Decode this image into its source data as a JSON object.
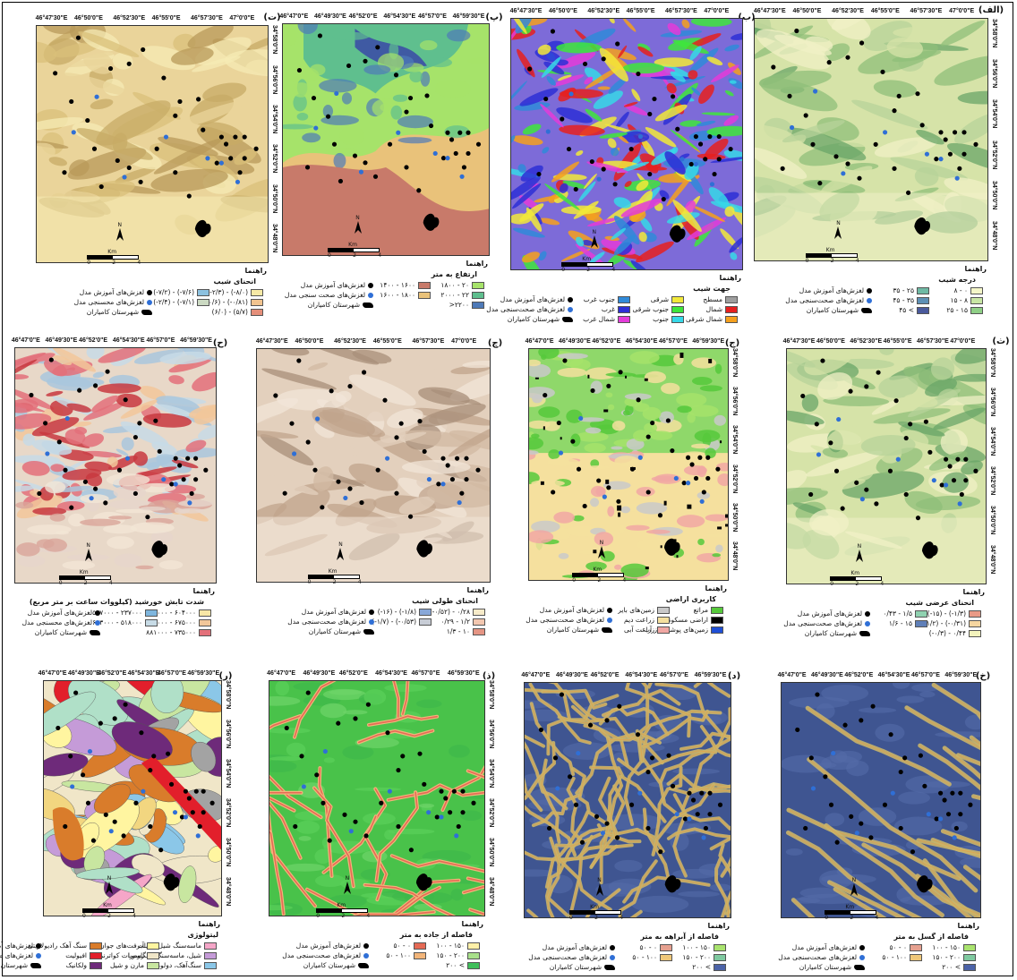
{
  "panels": [
    {
      "id": "alef",
      "tag": "(الف)",
      "bg": {
        "type": "slope-green",
        "c1": "#e9f0b8",
        "c2": "#8cc26f",
        "c3": "#3f8f5c"
      },
      "lons": [
        "46°47'30\"E",
        "46°50'0\"E",
        "46°52'30\"E",
        "46°55'0\"E",
        "46°57'30\"E",
        "47°0'0\"E"
      ],
      "lats": [
        "34°58'0\"N",
        "34°56'0\"N",
        "34°54'0\"N",
        "34°52'0\"N",
        "34°50'0\"N",
        "34°48'0\"N"
      ],
      "legend": {
        "head": "راهنما",
        "title": "درجه شیب",
        "classes": [
          {
            "label": "۸ - ۰",
            "color": "#f4f6c8"
          },
          {
            "label": "۱۵ - ۸",
            "color": "#c8e6a4"
          },
          {
            "label": "۲۵ - ۱۵",
            "color": "#8fcf86"
          },
          {
            "label": "۳۵ - ۲۵",
            "color": "#6fb9a4"
          },
          {
            "label": "۴۵ - ۳۵",
            "color": "#5e90b5"
          },
          {
            "label": "۴۵ <",
            "color": "#4a5a9c"
          }
        ],
        "points": [
          "لغزش‌های آموزش مدل",
          "لغزش‌های صحت‌سنجی مدل",
          "شهرستان کامیاران"
        ]
      }
    },
    {
      "id": "be",
      "tag": "(ب)",
      "bg": {
        "type": "aspect"
      },
      "lons": [
        "46°47'30\"E",
        "46°50'0\"E",
        "46°52'30\"E",
        "46°55'0\"E",
        "46°57'30\"E",
        "47°0'0\"E"
      ],
      "lats": [],
      "legend": {
        "head": "راهنما",
        "title": "جهت شیب",
        "classes": [
          {
            "label": "مسطح",
            "color": "#9e9e9e"
          },
          {
            "label": "شمال",
            "color": "#e6201f"
          },
          {
            "label": "شمال شرقی",
            "color": "#f5a01d"
          },
          {
            "label": "شرقی",
            "color": "#f2e93a"
          },
          {
            "label": "جنوب شرقی",
            "color": "#3ee63b"
          },
          {
            "label": "جنوب",
            "color": "#36d8e8"
          },
          {
            "label": "جنوب غرب",
            "color": "#2f8ad9"
          },
          {
            "label": "غرب",
            "color": "#2d2fd6"
          },
          {
            "label": "شمال غرب",
            "color": "#e33bd9"
          }
        ],
        "points": [
          "لغزش‌های آموزش مدل",
          "لغزش‌های صحت‌سنجی مدل",
          "شهرستان کامیاران"
        ]
      }
    },
    {
      "id": "pe",
      "tag": "(پ)",
      "bg": {
        "type": "elevation"
      },
      "lons": [
        "46°47'0\"E",
        "46°49'30\"E",
        "46°52'0\"E",
        "46°54'30\"E",
        "46°57'0\"E",
        "46°59'30\"E"
      ],
      "lats": [],
      "legend": {
        "head": "راهنما",
        "title": "ارتفاع به متر",
        "classes": [
          {
            "label": "۱۸۰۰ - ۲۰",
            "color": "#a6e36a"
          },
          {
            "label": "۲۰۰۰ - ۲۲",
            "color": "#5fbf8e"
          },
          {
            "label": ">۲۲۰۰",
            "color": "#4e7ab8"
          },
          {
            "label": "۱۴۰۰ - ۱۶۰۰",
            "color": "#c87a6a"
          },
          {
            "label": "۱۶۰۰ - ۱۸۰۰",
            "color": "#e9c27a"
          }
        ],
        "points": [
          "لغزش‌های آموزش مدل",
          "لغزش‌های صحت سنجی مدل",
          "شهرستان کامیاران"
        ]
      }
    },
    {
      "id": "te",
      "tag": "(ت)",
      "bg": {
        "type": "slope-yellow",
        "c1": "#f3e6a8",
        "c2": "#d9c07a",
        "c3": "#b89a5a"
      },
      "lons": [
        "46°47'30\"E",
        "46°50'0\"E",
        "46°52'30\"E",
        "46°55'0\"E",
        "46°57'30\"E",
        "47°0'0\"E"
      ],
      "lats": [
        "34°58'0\"N",
        "34°56'0\"N",
        "34°54'0\"N",
        "34°52'0\"N",
        "34°50'0\"N",
        "34°48'0\"N"
      ],
      "legend": {
        "head": "راهنما",
        "title": "انحنای شیب",
        "classes": [
          {
            "label": "(-۲/۳) - (-۸/۰)",
            "color": "#f6e9a6"
          },
          {
            "label": "(۰/۶) - (-۰/۸۱)",
            "color": "#f2c48f"
          },
          {
            "label": "(۶/۰) - (۵/۷)",
            "color": "#e58f7a"
          },
          {
            "label": "(-۷/۲) - (-۷/۶)",
            "color": "#8cc1df"
          },
          {
            "label": "(-۲/۴) - (-۷/۱)",
            "color": "#cbd9c2"
          }
        ],
        "points": [
          "لغزش‌های آموزش مدل",
          "لغزش‌های محسنجی مدل",
          "شهرستان کامیاران"
        ]
      }
    },
    {
      "id": "se",
      "tag": "(ث)",
      "bg": {
        "type": "slope-green",
        "c1": "#f0f0c6",
        "c2": "#b7d39a",
        "c3": "#7fa870"
      },
      "lons": [
        "46°47'30\"E",
        "46°50'0\"E",
        "46°52'30\"E",
        "46°55'0\"E",
        "46°57'30\"E",
        "47°0'0\"E"
      ],
      "lats": [
        "34°58'0\"N",
        "34°56'0\"N",
        "34°54'0\"N",
        "34°52'0\"N",
        "34°50'0\"N",
        "34°48'0\"N"
      ],
      "legend": {
        "head": "راهنما",
        "title": "انحنای عرضی شیب",
        "classes": [
          {
            "label": "(-۱۵) - (-۱/۳)",
            "color": "#e99a86"
          },
          {
            "label": "(-۱/۲) - (-۰/۳۱)",
            "color": "#f6d6a0"
          },
          {
            "label": "(-۰/۳) - ۰/۴۴",
            "color": "#f3f3bc"
          },
          {
            "label": "۰/۴۳ - ۱/۵",
            "color": "#8fd1b0"
          },
          {
            "label": "۱/۶ - ۱۵",
            "color": "#5f7fb8"
          }
        ],
        "points": [
          "لغزش‌های آموزش مدل",
          "لغزش‌های صحت‌سنجی مدل",
          "شهرستان کامیاران"
        ]
      }
    },
    {
      "id": "jim",
      "tag": "(ج)",
      "bg": {
        "type": "landuse"
      },
      "lons": [
        "46°47'0\"E",
        "46°49'30\"E",
        "46°52'0\"E",
        "46°54'30\"E",
        "46°57'0\"E",
        "46°59'30\"E"
      ],
      "lats": [
        "34°58'0\"N",
        "34°56'0\"N",
        "34°54'0\"N",
        "34°52'0\"N",
        "34°50'0\"N",
        "34°48'0\"N"
      ],
      "legend": {
        "head": "راهنما",
        "title": "کاربری اراضی",
        "classes": [
          {
            "label": "مراتع",
            "color": "#56c93b"
          },
          {
            "label": "اراضی مسکونی",
            "color": "#000000"
          },
          {
            "label": "زمین‌های پوشیده از آب",
            "color": "#1f4fd6"
          },
          {
            "label": "زمین‌های بایر",
            "color": "#c9c9c9"
          },
          {
            "label": "زراعت دیم",
            "color": "#f5e09e"
          },
          {
            "label": "زراعت آبی",
            "color": "#f1a7a3"
          }
        ],
        "points": [
          "لغزش‌های آموزش مدل",
          "لغزش‌های صحت‌سنجی مدل",
          "شهرستان کامیاران"
        ]
      }
    },
    {
      "id": "che",
      "tag": "(چ)",
      "bg": {
        "type": "slope-brown"
      },
      "lons": [
        "46°47'30\"E",
        "46°50'0\"E",
        "46°52'30\"E",
        "46°55'0\"E",
        "46°57'30\"E",
        "47°0'0\"E"
      ],
      "lats": [],
      "legend": {
        "head": "راهنما",
        "title": "انحنای طولی شیب",
        "classes": [
          {
            "label": "(-۰/۵۲) - ۰/۲۸",
            "color": "#f7ebc9"
          },
          {
            "label": "۰/۲۹ - ۱/۲",
            "color": "#f3c7b0"
          },
          {
            "label": "۱/۳ - ۱۰",
            "color": "#e59584"
          },
          {
            "label": "(-۱۶) - (-۱/۸)",
            "color": "#89a8d8"
          },
          {
            "label": "(-۱/۷) - (-۰/۵۳)",
            "color": "#c8cdd6"
          }
        ],
        "points": [
          "لغزش‌های آموزش مدل",
          "لغزش‌های صحت‌سنجی مدل",
          "شهرستان کامیاران"
        ]
      }
    },
    {
      "id": "he",
      "tag": "(ح)",
      "bg": {
        "type": "solar"
      },
      "lons": [
        "46°47'0\"E",
        "46°49'30\"E",
        "46°52'0\"E",
        "46°54'30\"E",
        "46°57'0\"E",
        "46°59'30\"E"
      ],
      "lats": [],
      "legend": {
        "head": "راهنما",
        "title": "شدت تابش خورشید (کیلووات ساعت بر متر مربع)",
        "classes": [
          {
            "label": "۶۷۴۰۰۰ - ۶۰۴۰۰۰",
            "color": "#f7e7a6"
          },
          {
            "label": "۷۳۴۰۰۰ - ۶۷۵۰۰۰",
            "color": "#f2c79a"
          },
          {
            "label": "۸۸۱۰۰۰ - ۷۳۵۰۰۰",
            "color": "#e3707a"
          },
          {
            "label": "۵۱۷۰۰۰ - ۲۳۷۰۰۰",
            "color": "#7fb6de"
          },
          {
            "label": "۶۰۳۰۰۰ - ۵۱۸۰۰۰",
            "color": "#c7dbe6"
          }
        ],
        "points": [
          "لغزش‌های آموزش مدل",
          "لغزش‌های محسنجی مدل",
          "شهرستان کامیاران"
        ]
      }
    },
    {
      "id": "khe",
      "tag": "(خ)",
      "bg": {
        "type": "fault"
      },
      "lons": [
        "46°47'0\"E",
        "46°49'30\"E",
        "46°52'0\"E",
        "46°54'30\"E",
        "46°57'0\"E",
        "46°59'30\"E"
      ],
      "lats": [],
      "legend": {
        "head": "راهنما",
        "title": "فاصله از گسل به متر",
        "classes": [
          {
            "label": "۱۰۰ - ۱۵۰",
            "color": "#a9e36e"
          },
          {
            "label": "۱۵۰ - ۲۰۰",
            "color": "#7fc9a0"
          },
          {
            "label": "۲۰۰ <",
            "color": "#4c63a8"
          },
          {
            "label": "۵۰ - ۰",
            "color": "#e6a08f"
          },
          {
            "label": "۵۰ - ۱۰۰",
            "color": "#efc779"
          }
        ],
        "points": [
          "لغزش‌های آموزش مدل",
          "لغزش‌های صحت‌سنجی مدل",
          "شهرستان کامیاران"
        ]
      }
    },
    {
      "id": "dal",
      "tag": "(د)",
      "bg": {
        "type": "drainage"
      },
      "lons": [
        "46°47'0\"E",
        "46°49'30\"E",
        "46°52'0\"E",
        "46°54'30\"E",
        "46°57'0\"E",
        "46°59'30\"E"
      ],
      "lats": [],
      "legend": {
        "head": "راهنما",
        "title": "فاصله از آبراهه به متر",
        "classes": [
          {
            "label": "۱۰۰ - ۱۵۰",
            "color": "#a9e36e"
          },
          {
            "label": "۱۵۰ - ۲۰۰",
            "color": "#7fc9a0"
          },
          {
            "label": "۲۰۰ <",
            "color": "#4c63a8"
          },
          {
            "label": "۵۰ - ۰",
            "color": "#e6a08f"
          },
          {
            "label": "۵۰ - ۱۰۰",
            "color": "#efc779"
          }
        ],
        "points": [
          "لغزش‌های آموزش مدل",
          "لغزش‌های صحت‌سنجی مدل",
          "شهرستان کامیاران"
        ]
      }
    },
    {
      "id": "zal",
      "tag": "(ذ)",
      "bg": {
        "type": "roads"
      },
      "lons": [
        "46°47'0\"E",
        "46°49'30\"E",
        "46°52'0\"E",
        "46°54'30\"E",
        "46°57'0\"E",
        "46°59'30\"E"
      ],
      "lats": [
        "34°58'0\"N",
        "34°56'0\"N",
        "34°54'0\"N",
        "34°52'0\"N",
        "34°50'0\"N",
        "34°48'0\"N"
      ],
      "legend": {
        "head": "راهنما",
        "title": "فاصله از جاده به متر",
        "classes": [
          {
            "label": "۱۰۰ - ۱۵۰",
            "color": "#fff0a8"
          },
          {
            "label": "۱۵۰ - ۲۰۰",
            "color": "#a8e08a"
          },
          {
            "label": "۲۰۰ <",
            "color": "#3fbf5a"
          },
          {
            "label": "۵۰ - ۰",
            "color": "#e56a55"
          },
          {
            "label": "۵۰ - ۱۰۰",
            "color": "#f2b57a"
          }
        ],
        "points": [
          "لغزش‌های آموزش مدل",
          "لغزش‌های صحت‌سنجی مدل",
          "شهرستان کامیاران"
        ]
      }
    },
    {
      "id": "re",
      "tag": "(ر)",
      "bg": {
        "type": "geology"
      },
      "lons": [
        "46°47'0\"E",
        "46°49'30\"E",
        "46°52'0\"E",
        "46°54'30\"E",
        "46°57'0\"E",
        "46°59'30\"E"
      ],
      "lats": [
        "34°58'0\"N",
        "34°56'0\"N",
        "34°54'0\"N",
        "34°52'0\"N",
        "34°50'0\"N",
        "34°48'0\"N"
      ],
      "legend": {
        "head": "راهنما",
        "title": "لیتولوژی",
        "classes": [
          {
            "label": "ماسه‌سنگ شیل، سیلت",
            "color": "#f5a6c8"
          },
          {
            "label": "شیل، ماسه‌سنگ، کنگلومرا",
            "color": "#c59bd8"
          },
          {
            "label": "سنگ‌آهک، دولومیت",
            "color": "#8bc7e8"
          },
          {
            "label": "آبرفت‌های جوان",
            "color": "#fff5a0"
          },
          {
            "label": "رسوبات کواترنری",
            "color": "#f0e6c8"
          },
          {
            "label": "مارن و شیل",
            "color": "#c8e6a0"
          },
          {
            "label": "سنگ آهک رادیولاریتی",
            "color": "#d97c2b"
          },
          {
            "label": "افیولیت",
            "color": "#e21f2b"
          },
          {
            "label": "ولکانیک",
            "color": "#6e2a7a"
          }
        ],
        "points": [
          "لغزش‌های آموزش مدل",
          "لغزش‌های صحت‌سنجی مدل",
          "شهرستان کامیاران"
        ]
      }
    }
  ],
  "scale_labels": [
    "0",
    "2",
    "4"
  ],
  "scale_unit": "Km",
  "north_label": "N"
}
